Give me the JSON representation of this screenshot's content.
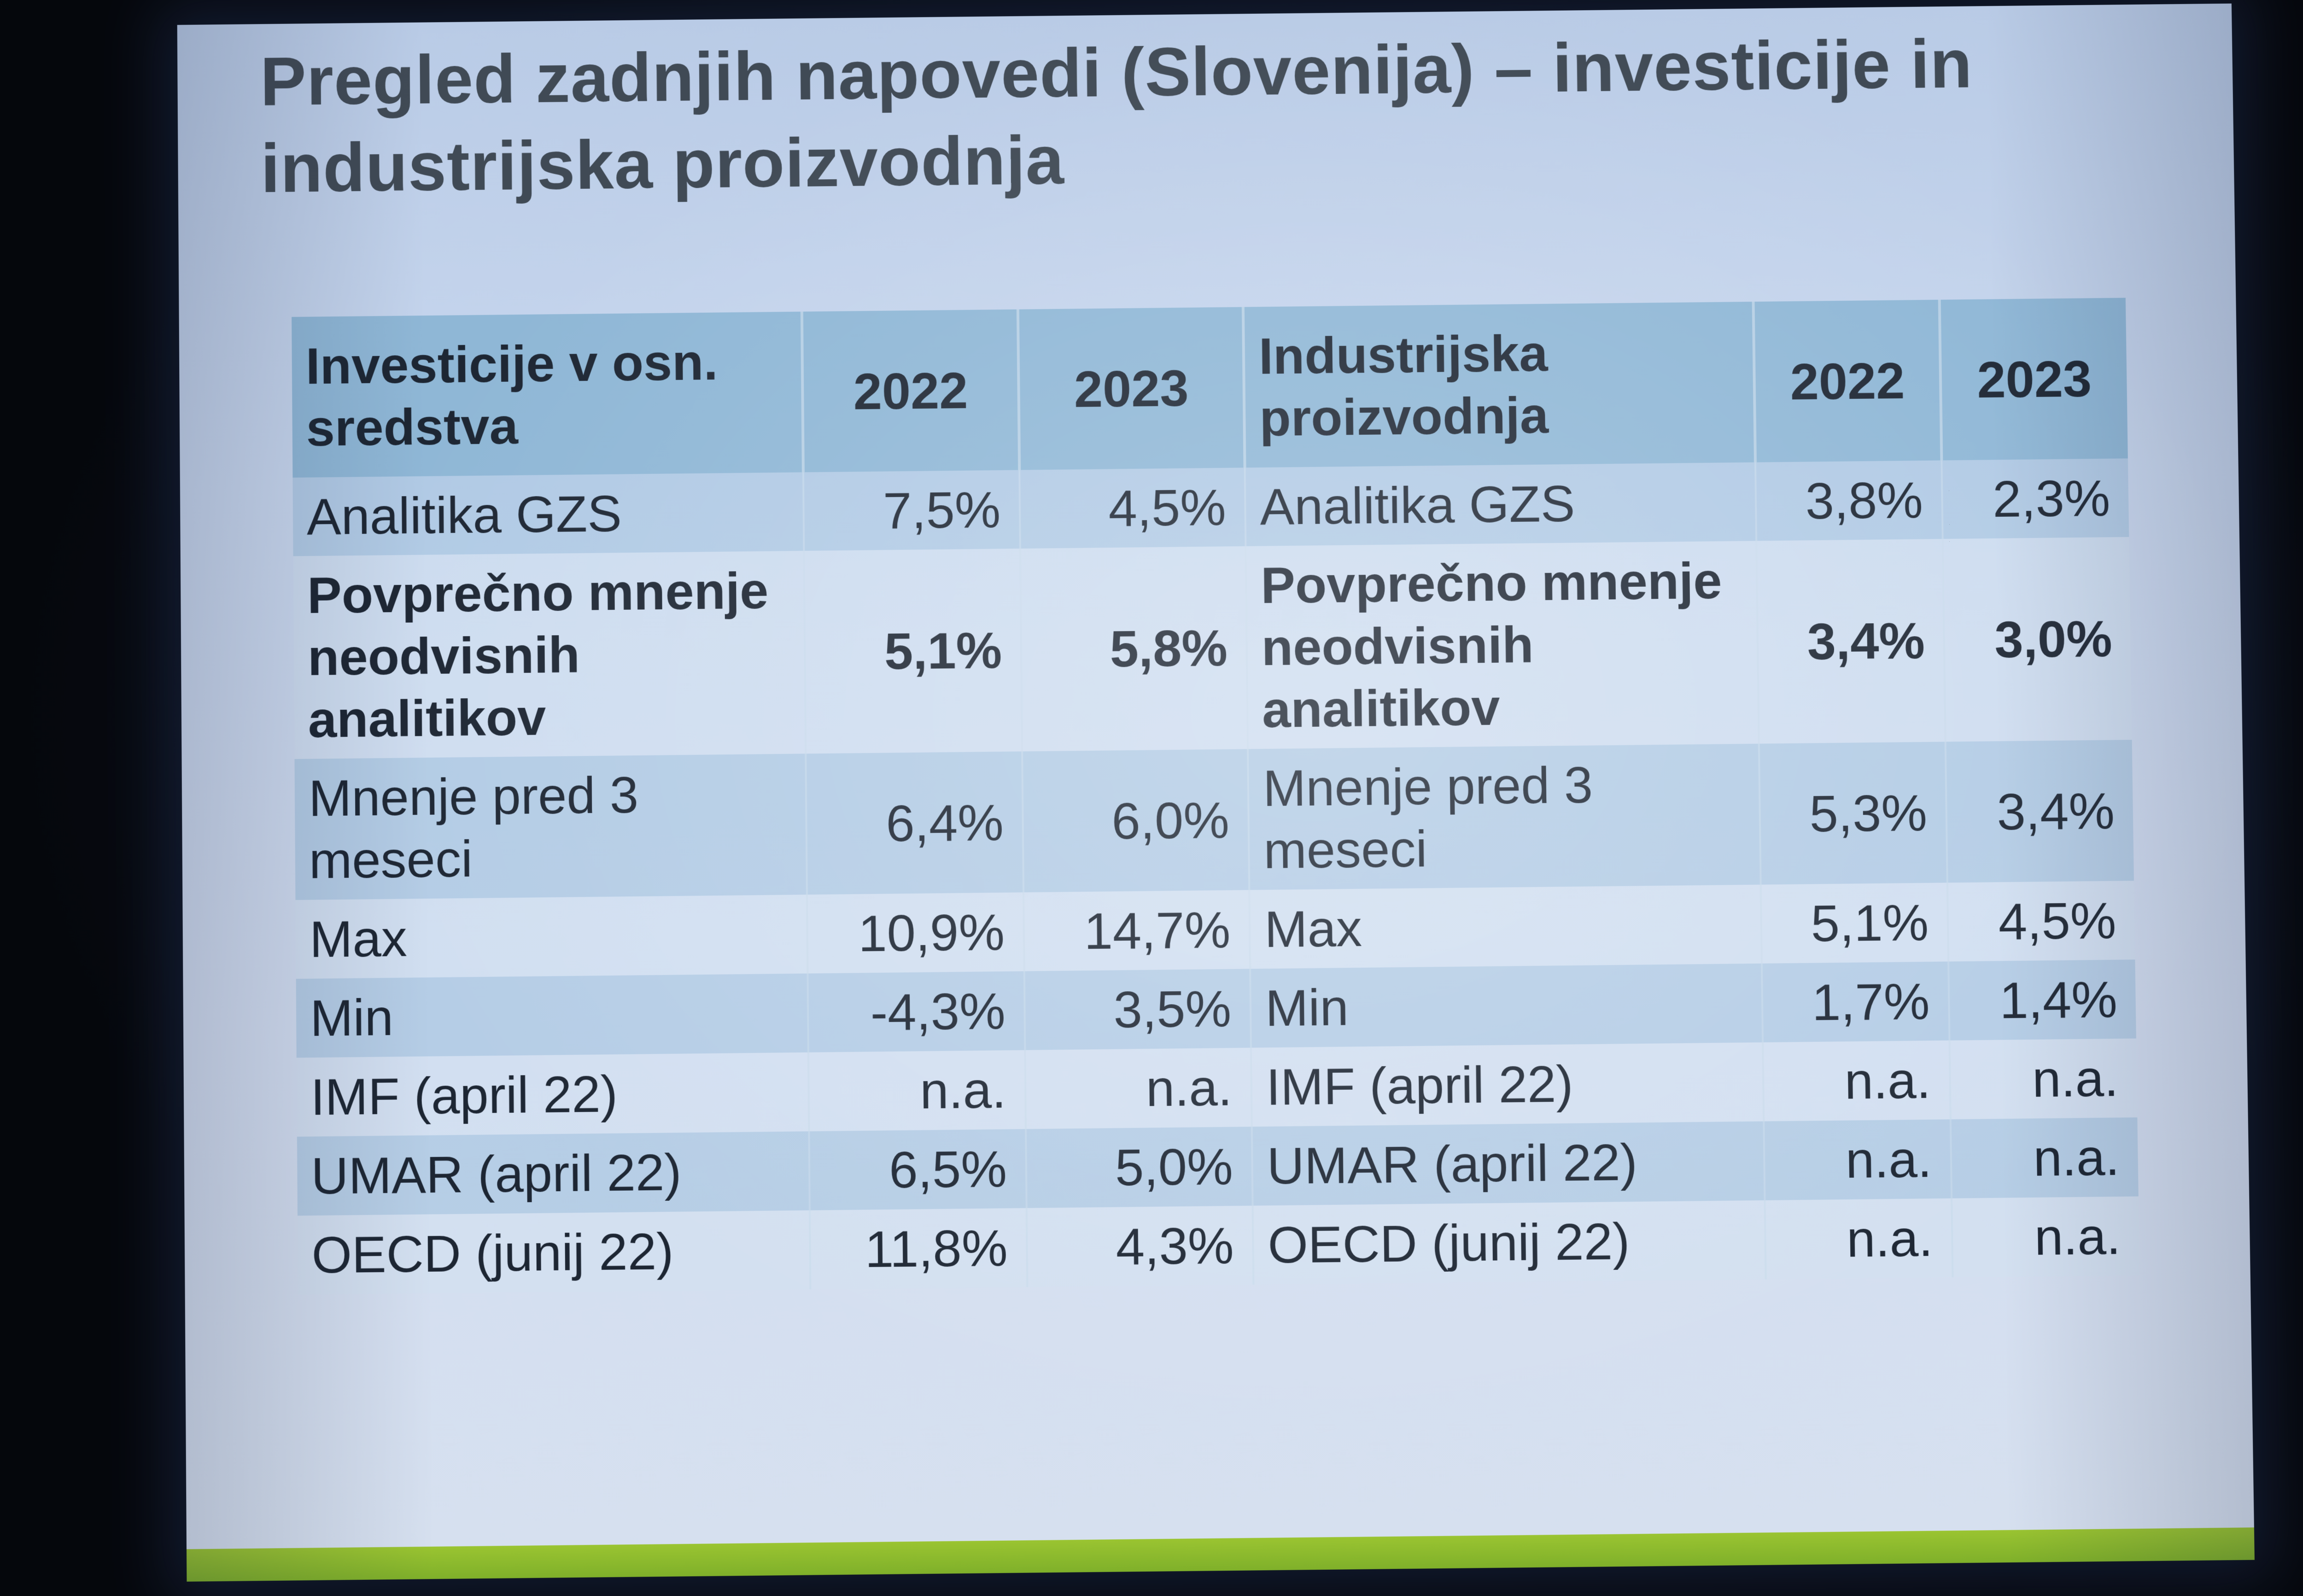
{
  "slide": {
    "title": "Pregled zadnjih napovedi (Slovenija) – investicije in industrijska proizvodnja"
  },
  "table": {
    "headers": {
      "left_label": "Investicije v osn. sredstva",
      "left_y1": "2022",
      "left_y2": "2023",
      "right_label": "Industrijska proizvodnja",
      "right_y1": "2022",
      "right_y2": "2023"
    },
    "rows": [
      {
        "left_label": "Analitika GZS",
        "left_y1": "7,5%",
        "left_y2": "4,5%",
        "right_label": "Analitika GZS",
        "right_y1": "3,8%",
        "right_y2": "2,3%"
      },
      {
        "left_label": "Povprečno mnenje neodvisnih analitikov",
        "left_y1": "5,1%",
        "left_y2": "5,8%",
        "right_label": "Povprečno mnenje neodvisnih analitikov",
        "right_y1": "3,4%",
        "right_y2": "3,0%"
      },
      {
        "left_label": "Mnenje pred 3 meseci",
        "left_y1": "6,4%",
        "left_y2": "6,0%",
        "right_label": "Mnenje pred 3 meseci",
        "right_y1": "5,3%",
        "right_y2": "3,4%"
      },
      {
        "left_label": "Max",
        "left_y1": "10,9%",
        "left_y2": "14,7%",
        "right_label": "Max",
        "right_y1": "5,1%",
        "right_y2": "4,5%"
      },
      {
        "left_label": "Min",
        "left_y1": "-4,3%",
        "left_y2": "3,5%",
        "right_label": "Min",
        "right_y1": "1,7%",
        "right_y2": "1,4%"
      },
      {
        "left_label": "IMF (april 22)",
        "left_y1": "n.a.",
        "left_y2": "n.a.",
        "right_label": "IMF (april 22)",
        "right_y1": "n.a.",
        "right_y2": "n.a."
      },
      {
        "left_label": "UMAR (april 22)",
        "left_y1": "6,5%",
        "left_y2": "5,0%",
        "right_label": "UMAR (april 22)",
        "right_y1": "n.a.",
        "right_y2": "n.a."
      },
      {
        "left_label": "OECD (junij 22)",
        "left_y1": "11,8%",
        "left_y2": "4,3%",
        "right_label": "OECD (junij 22)",
        "right_y1": "n.a.",
        "right_y2": "n.a."
      }
    ]
  },
  "colors": {
    "header_bg": "#8fb7d6",
    "title_text": "#404a55",
    "accent_bar": "#8ebd2e"
  }
}
